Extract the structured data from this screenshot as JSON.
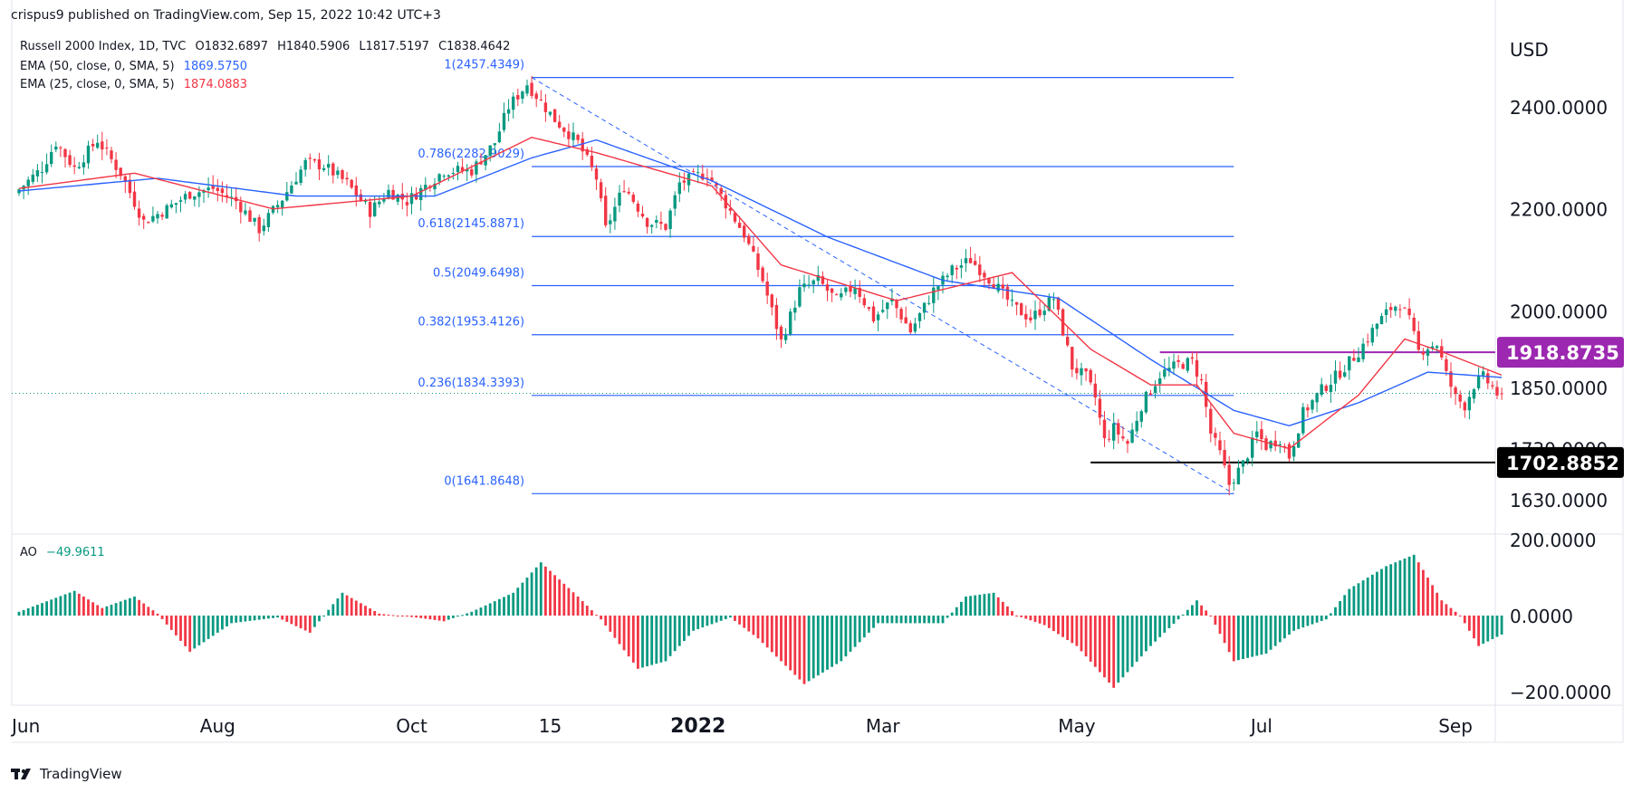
{
  "header": {
    "published": "crispus9 published on TradingView.com, Sep 15, 2022 10:42 UTC+3"
  },
  "legend": {
    "symbol": "Russell 2000 Index, 1D, TVC",
    "ohlc": {
      "O": "O1832.6897",
      "H": "H1840.5906",
      "L": "L1817.5197",
      "C": "C1838.4642"
    },
    "ema50": {
      "label": "EMA (50, close, 0, SMA, 5)",
      "value": "1869.5750",
      "color": "#2962ff"
    },
    "ema25": {
      "label": "EMA (25, close, 0, SMA, 5)",
      "value": "1874.0883",
      "color": "#f23645"
    },
    "ao": {
      "label": "AO",
      "value": "−49.9611",
      "color": "#089981"
    }
  },
  "price_axis": {
    "currency": "USD",
    "ticks": [
      "2400.0000",
      "2200.0000",
      "2000.0000",
      "1850.0000",
      "1730.0000",
      "1630.0000"
    ],
    "tick_values": [
      2400,
      2200,
      2000,
      1850,
      1730,
      1630
    ],
    "badges": [
      {
        "label": "1918.8735",
        "value": 1918.8735,
        "bg": "#9c27b0",
        "fg": "#ffffff"
      },
      {
        "label": "1702.8852",
        "value": 1702.8852,
        "bg": "#000000",
        "fg": "#ffffff"
      }
    ]
  },
  "ao_axis": {
    "ticks": [
      "200.0000",
      "0.0000",
      "−200.0000"
    ],
    "tick_values": [
      200,
      0,
      -200
    ]
  },
  "time_axis": {
    "labels": [
      {
        "text": "Jun",
        "day": 0,
        "bold": false
      },
      {
        "text": "Aug",
        "day": 43,
        "bold": false
      },
      {
        "text": "Oct",
        "day": 85,
        "bold": false
      },
      {
        "text": "15",
        "day": 115,
        "bold": false
      },
      {
        "text": "2022",
        "day": 147,
        "bold": true
      },
      {
        "text": "Mar",
        "day": 187,
        "bold": false
      },
      {
        "text": "May",
        "day": 229,
        "bold": false
      },
      {
        "text": "Jul",
        "day": 269,
        "bold": false
      },
      {
        "text": "Sep",
        "day": 311,
        "bold": false
      }
    ]
  },
  "chart_data": {
    "type": "candlestick",
    "title": "Russell 2000 Index, 1D, TVC",
    "x_unit": "trading days since start of visible range",
    "ylim": [
      1615,
      2475
    ],
    "fibonacci": {
      "levels": [
        {
          "label": "1(2457.4349)",
          "value": 2457.4349
        },
        {
          "label": "0.786(2282.9029)",
          "value": 2282.9029
        },
        {
          "label": "0.618(2145.8871)",
          "value": 2145.8871
        },
        {
          "label": "0.5(2049.6498)",
          "value": 2049.6498
        },
        {
          "label": "0.382(1953.4126)",
          "value": 1953.4126
        },
        {
          "label": "0.236(1834.3393)",
          "value": 1834.3393
        },
        {
          "label": "0(1641.8648)",
          "value": 1641.8648
        }
      ],
      "start_day": 111,
      "end_day": 263,
      "trend_from": {
        "day": 111,
        "value": 2457.4349
      },
      "trend_to": {
        "day": 263,
        "value": 1641.8648
      },
      "color": "#2962ff"
    },
    "horizontal_lines": [
      {
        "value": 1918.8735,
        "from_day": 247,
        "to_day": 330,
        "color": "#9c27b0"
      },
      {
        "value": 1702.8852,
        "from_day": 232,
        "to_day": 330,
        "color": "#000000"
      }
    ],
    "last_price": 1838.4642,
    "anchors": [
      [
        0,
        2230
      ],
      [
        6,
        2280
      ],
      [
        9,
        2330
      ],
      [
        13,
        2280
      ],
      [
        18,
        2335
      ],
      [
        23,
        2270
      ],
      [
        28,
        2175
      ],
      [
        33,
        2200
      ],
      [
        38,
        2230
      ],
      [
        43,
        2240
      ],
      [
        48,
        2215
      ],
      [
        53,
        2160
      ],
      [
        58,
        2220
      ],
      [
        63,
        2290
      ],
      [
        67,
        2285
      ],
      [
        72,
        2250
      ],
      [
        77,
        2195
      ],
      [
        81,
        2235
      ],
      [
        85,
        2215
      ],
      [
        89,
        2245
      ],
      [
        93,
        2275
      ],
      [
        99,
        2275
      ],
      [
        104,
        2330
      ],
      [
        107,
        2400
      ],
      [
        111,
        2445
      ],
      [
        117,
        2375
      ],
      [
        122,
        2330
      ],
      [
        126,
        2260
      ],
      [
        128,
        2160
      ],
      [
        132,
        2245
      ],
      [
        137,
        2175
      ],
      [
        141,
        2165
      ],
      [
        144,
        2250
      ],
      [
        148,
        2265
      ],
      [
        150,
        2270
      ],
      [
        153,
        2225
      ],
      [
        158,
        2150
      ],
      [
        162,
        2060
      ],
      [
        166,
        1940
      ],
      [
        170,
        2040
      ],
      [
        174,
        2060
      ],
      [
        178,
        2020
      ],
      [
        182,
        2050
      ],
      [
        186,
        1985
      ],
      [
        190,
        2020
      ],
      [
        194,
        1960
      ],
      [
        199,
        2040
      ],
      [
        203,
        2080
      ],
      [
        207,
        2100
      ],
      [
        212,
        2055
      ],
      [
        216,
        2010
      ],
      [
        220,
        1985
      ],
      [
        225,
        2025
      ],
      [
        227,
        1960
      ],
      [
        229,
        1890
      ],
      [
        232,
        1870
      ],
      [
        234,
        1830
      ],
      [
        236,
        1745
      ],
      [
        238,
        1770
      ],
      [
        241,
        1740
      ],
      [
        244,
        1815
      ],
      [
        248,
        1875
      ],
      [
        252,
        1895
      ],
      [
        255,
        1900
      ],
      [
        257,
        1860
      ],
      [
        259,
        1760
      ],
      [
        261,
        1720
      ],
      [
        263,
        1660
      ],
      [
        266,
        1700
      ],
      [
        269,
        1760
      ],
      [
        271,
        1735
      ],
      [
        274,
        1750
      ],
      [
        276,
        1715
      ],
      [
        279,
        1800
      ],
      [
        283,
        1845
      ],
      [
        287,
        1880
      ],
      [
        291,
        1920
      ],
      [
        295,
        1975
      ],
      [
        298,
        2005
      ],
      [
        300,
        2015
      ],
      [
        302,
        1980
      ],
      [
        304,
        1920
      ],
      [
        306,
        1930
      ],
      [
        308,
        1935
      ],
      [
        310,
        1875
      ],
      [
        312,
        1830
      ],
      [
        314,
        1815
      ],
      [
        316,
        1855
      ],
      [
        318,
        1870
      ],
      [
        320,
        1850
      ],
      [
        321,
        1838
      ]
    ],
    "ema50_anchors": [
      [
        0,
        2235
      ],
      [
        30,
        2260
      ],
      [
        60,
        2225
      ],
      [
        90,
        2225
      ],
      [
        111,
        2300
      ],
      [
        125,
        2335
      ],
      [
        150,
        2255
      ],
      [
        175,
        2145
      ],
      [
        200,
        2060
      ],
      [
        225,
        2025
      ],
      [
        245,
        1905
      ],
      [
        263,
        1805
      ],
      [
        275,
        1775
      ],
      [
        290,
        1820
      ],
      [
        305,
        1880
      ],
      [
        321,
        1869.6
      ]
    ],
    "ema25_anchors": [
      [
        0,
        2240
      ],
      [
        25,
        2270
      ],
      [
        55,
        2200
      ],
      [
        85,
        2225
      ],
      [
        111,
        2340
      ],
      [
        125,
        2310
      ],
      [
        150,
        2245
      ],
      [
        165,
        2090
      ],
      [
        190,
        2020
      ],
      [
        215,
        2075
      ],
      [
        232,
        1925
      ],
      [
        245,
        1855
      ],
      [
        255,
        1855
      ],
      [
        263,
        1760
      ],
      [
        275,
        1730
      ],
      [
        290,
        1835
      ],
      [
        300,
        1945
      ],
      [
        308,
        1920
      ],
      [
        321,
        1874.1
      ]
    ],
    "ao_anchors": [
      [
        0,
        10
      ],
      [
        12,
        65
      ],
      [
        18,
        20
      ],
      [
        25,
        50
      ],
      [
        30,
        5
      ],
      [
        37,
        -95
      ],
      [
        46,
        -20
      ],
      [
        56,
        -5
      ],
      [
        63,
        -45
      ],
      [
        70,
        60
      ],
      [
        78,
        5
      ],
      [
        86,
        -5
      ],
      [
        92,
        -15
      ],
      [
        98,
        10
      ],
      [
        107,
        60
      ],
      [
        113,
        140
      ],
      [
        121,
        50
      ],
      [
        126,
        -10
      ],
      [
        134,
        -140
      ],
      [
        140,
        -120
      ],
      [
        146,
        -40
      ],
      [
        154,
        -5
      ],
      [
        160,
        -60
      ],
      [
        170,
        -180
      ],
      [
        178,
        -120
      ],
      [
        186,
        -20
      ],
      [
        194,
        -20
      ],
      [
        200,
        -20
      ],
      [
        205,
        50
      ],
      [
        211,
        60
      ],
      [
        216,
        0
      ],
      [
        222,
        -25
      ],
      [
        229,
        -80
      ],
      [
        237,
        -190
      ],
      [
        245,
        -80
      ],
      [
        251,
        -10
      ],
      [
        255,
        40
      ],
      [
        258,
        0
      ],
      [
        263,
        -120
      ],
      [
        270,
        -100
      ],
      [
        276,
        -40
      ],
      [
        283,
        -10
      ],
      [
        288,
        70
      ],
      [
        296,
        130
      ],
      [
        302,
        160
      ],
      [
        308,
        40
      ],
      [
        312,
        0
      ],
      [
        316,
        -80
      ],
      [
        321,
        -50
      ]
    ]
  }
}
